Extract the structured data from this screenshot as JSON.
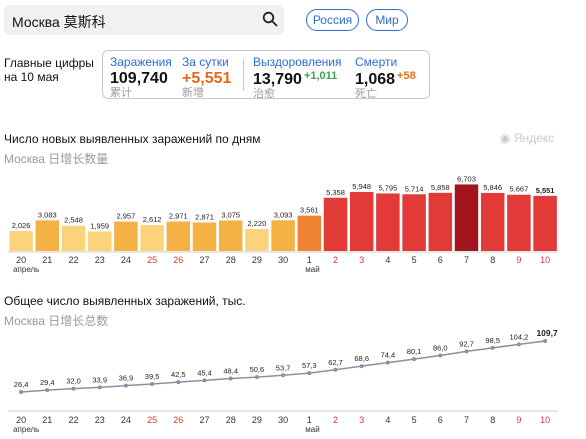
{
  "search": {
    "text": "Москва 莫斯科"
  },
  "chips": {
    "russia": "Россия",
    "world": "Мир"
  },
  "main_figures": {
    "line1": "Главные цифры",
    "line2": "на 10 мая"
  },
  "stats": {
    "infected": {
      "label": "Заражения",
      "value": "109,740",
      "sub": "累计"
    },
    "daily": {
      "label": "За сутки",
      "value": "+5,551",
      "sub": "新增"
    },
    "recovered": {
      "label": "Выздоровления",
      "value": "13,790",
      "delta": "+1,011",
      "sub": "治愈"
    },
    "deaths": {
      "label": "Смерти",
      "value": "1,068",
      "delta": "+58",
      "sub": "死亡"
    }
  },
  "watermark": "Яндекс",
  "colors": {
    "accent": "#2f6bd6",
    "orange": "#e66a15",
    "green": "#3aa357",
    "weekend": "#d63b2f",
    "line": "#8c8fa3",
    "bar_light": "#fcd37b",
    "bar_mid": "#f4b144",
    "bar_orange": "#f08433",
    "bar_red": "#e23a36",
    "bar_dark": "#c41d25",
    "bar_darkest": "#a3151e"
  },
  "chart_data": [
    {
      "type": "bar",
      "title": "Число новых выявленных заражений по дням",
      "subtitle": "Москва 日增长数量",
      "categories": [
        "20",
        "21",
        "22",
        "23",
        "24",
        "25",
        "26",
        "27",
        "28",
        "29",
        "30",
        "1",
        "2",
        "3",
        "4",
        "5",
        "6",
        "7",
        "8",
        "9",
        "10"
      ],
      "month_labels": [
        "апрель",
        "май"
      ],
      "weekend_categories": [
        "25",
        "26",
        "2",
        "3",
        "9",
        "10"
      ],
      "values": [
        2026,
        3083,
        2548,
        1959,
        2957,
        2612,
        2971,
        2871,
        3075,
        2220,
        3093,
        3561,
        5358,
        5948,
        5795,
        5714,
        5858,
        6703,
        5846,
        5667,
        5551
      ],
      "data_labels": [
        "2,026",
        "3,083",
        "2,548",
        "1,959",
        "2,957",
        "2,612",
        "2,971",
        "2,871",
        "3,075",
        "2,220",
        "3,093",
        "3,561",
        "5,358",
        "5,948",
        "5,795",
        "5,714",
        "5,858",
        "6,703",
        "5,846",
        "5,667",
        "5,551"
      ]
    },
    {
      "type": "line",
      "title": "Общее число выявленных заражений, тыс.",
      "subtitle": "Москва 日增长总数",
      "categories": [
        "20",
        "21",
        "22",
        "23",
        "24",
        "25",
        "26",
        "27",
        "28",
        "29",
        "30",
        "1",
        "2",
        "3",
        "4",
        "5",
        "6",
        "7",
        "8",
        "9",
        "10"
      ],
      "month_labels": [
        "апрель",
        "май"
      ],
      "weekend_categories": [
        "25",
        "26",
        "2",
        "3",
        "9",
        "10"
      ],
      "values": [
        26.4,
        29.4,
        32.0,
        33.9,
        36.9,
        39.5,
        42.5,
        45.4,
        48.4,
        50.6,
        53.7,
        57.3,
        62.7,
        68.6,
        74.4,
        80.1,
        86.0,
        92.7,
        98.5,
        104.2,
        109.7
      ],
      "data_labels": [
        "26,4",
        "29,4",
        "32,0",
        "33,9",
        "36,9",
        "39,5",
        "42,5",
        "45,4",
        "48,4",
        "50,6",
        "53,7",
        "57,3",
        "62,7",
        "68,6",
        "74,4",
        "80,1",
        "86,0",
        "92,7",
        "98,5",
        "104,2",
        "109,7"
      ]
    }
  ]
}
